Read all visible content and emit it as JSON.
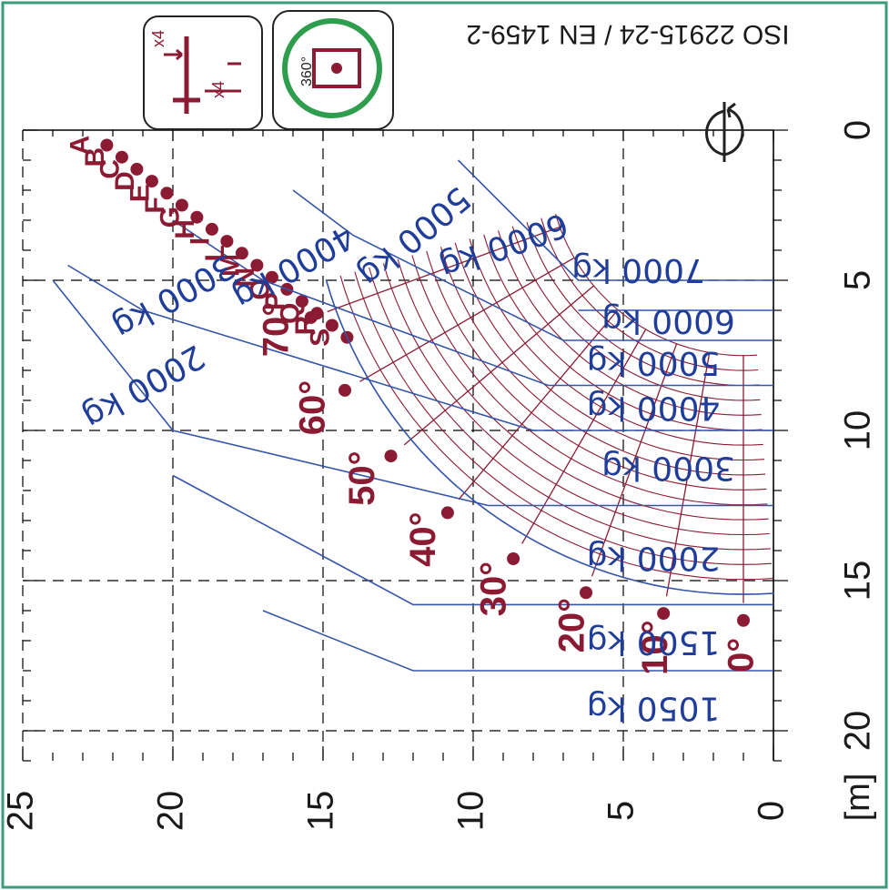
{
  "standard_text": "ISO 22915-24 / EN 1459-2",
  "icons": {
    "stabiliser": {
      "name": "stabiliser-icon",
      "count_h": "x4",
      "count_v": "x4"
    },
    "rotation": {
      "name": "rotation-360-icon",
      "text": "360°"
    }
  },
  "colors": {
    "boom": "#8b1a33",
    "zones": "#3355aa",
    "frame": "#3a9c78"
  },
  "chart_data": {
    "type": "load_chart",
    "xlabel": "[m]",
    "x_unit": "m",
    "x_ticks": [
      "0",
      "5",
      "10",
      "15",
      "20"
    ],
    "y_ticks": [
      "0",
      "5",
      "10",
      "15",
      "20",
      "25"
    ],
    "xlim": [
      0,
      21
    ],
    "ylim": [
      0,
      25
    ],
    "grid": false,
    "pivot": [
      1,
      1
    ],
    "extension_labels": [
      "A",
      "B",
      "C",
      "D",
      "E",
      "F",
      "G",
      "H",
      "I",
      "L",
      "M",
      "N",
      "O",
      "P",
      "Q",
      "R",
      "S"
    ],
    "max_reach_points": [
      [
        0.5,
        22.2
      ],
      [
        0.9,
        21.7
      ],
      [
        1.3,
        21.2
      ],
      [
        1.7,
        20.7
      ],
      [
        2.1,
        20.2
      ],
      [
        2.5,
        19.7
      ],
      [
        2.9,
        19.2
      ],
      [
        3.3,
        18.7
      ],
      [
        3.7,
        18.2
      ],
      [
        4.1,
        17.7
      ],
      [
        4.5,
        17.2
      ],
      [
        4.9,
        16.7
      ],
      [
        5.3,
        16.2
      ],
      [
        5.7,
        15.7
      ],
      [
        6.1,
        15.2
      ],
      [
        6.5,
        14.7
      ],
      [
        6.9,
        14.2
      ]
    ],
    "boom_angles": [
      "0°",
      "10°",
      "20°",
      "30°",
      "40°",
      "50°",
      "60°",
      "70°"
    ],
    "angle_values": [
      0,
      10,
      20,
      30,
      40,
      50,
      60,
      70
    ],
    "load_zones": [
      {
        "label": "7000 kg",
        "value": 7000
      },
      {
        "label": "6000 kg",
        "value": 6000
      },
      {
        "label": "6000 kg",
        "value": 6000
      },
      {
        "label": "5000 kg",
        "value": 5000
      },
      {
        "label": "5000 kg",
        "value": 5000
      },
      {
        "label": "4000 kg",
        "value": 4000
      },
      {
        "label": "4000 kg",
        "value": 4000
      },
      {
        "label": "3000 kg",
        "value": 3000
      },
      {
        "label": "3000 kg",
        "value": 3000
      },
      {
        "label": "2000 kg",
        "value": 2000
      },
      {
        "label": "2000 kg",
        "value": 2000
      },
      {
        "label": "1500 kg",
        "value": 1500
      },
      {
        "label": "1050 kg",
        "value": 1050
      }
    ]
  }
}
